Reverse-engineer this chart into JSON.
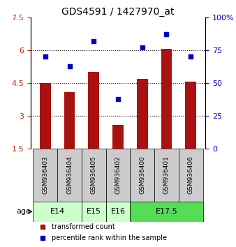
{
  "title": "GDS4591 / 1427970_at",
  "samples": [
    "GSM936403",
    "GSM936404",
    "GSM936405",
    "GSM936402",
    "GSM936400",
    "GSM936401",
    "GSM936406"
  ],
  "bar_values": [
    4.5,
    4.1,
    5.0,
    2.6,
    4.7,
    6.05,
    4.55
  ],
  "dot_values": [
    70,
    63,
    82,
    38,
    77,
    87,
    70
  ],
  "bar_color": "#aa1111",
  "dot_color": "#0000cc",
  "ylim_left": [
    1.5,
    7.5
  ],
  "ylim_right": [
    0,
    100
  ],
  "yticks_left": [
    1.5,
    3.0,
    4.5,
    6.0,
    7.5
  ],
  "ytick_labels_left": [
    "1.5",
    "3",
    "4.5",
    "6",
    "7.5"
  ],
  "yticks_right": [
    0,
    25,
    50,
    75,
    100
  ],
  "ytick_labels_right": [
    "0",
    "25",
    "50",
    "75",
    "100%"
  ],
  "hlines": [
    3.0,
    4.5,
    6.0
  ],
  "age_groups": [
    {
      "label": "E14",
      "span": [
        0,
        2
      ],
      "color": "#ccffcc"
    },
    {
      "label": "E15",
      "span": [
        2,
        3
      ],
      "color": "#ccffcc"
    },
    {
      "label": "E16",
      "span": [
        3,
        4
      ],
      "color": "#ccffcc"
    },
    {
      "label": "E17.5",
      "span": [
        4,
        7
      ],
      "color": "#55dd55"
    }
  ],
  "bar_bottom": 1.5,
  "legend_bar_label": "transformed count",
  "legend_dot_label": "percentile rank within the sample",
  "age_label": "age",
  "left_tick_color": "#cc2200",
  "right_tick_color": "#0000bb",
  "sample_box_color": "#cccccc",
  "bar_width": 0.45
}
